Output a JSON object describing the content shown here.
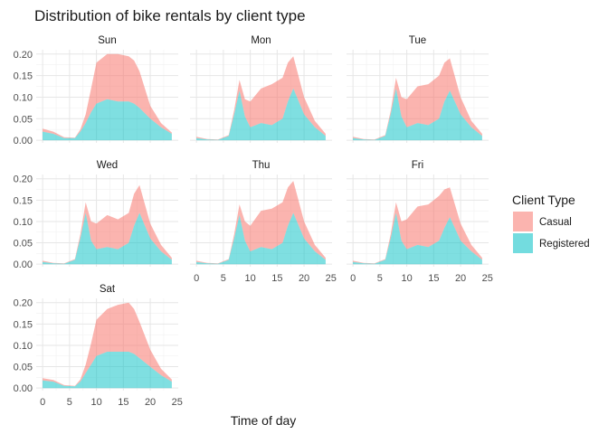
{
  "chart_data": {
    "type": "area",
    "title": "Distribution of bike rentals by client type",
    "xlabel": "Time of day",
    "ylabel": "",
    "xlim": [
      0,
      24
    ],
    "ylim": [
      0,
      0.21
    ],
    "x_ticks": [
      0,
      5,
      10,
      15,
      20,
      25
    ],
    "y_ticks": [
      0.0,
      0.05,
      0.1,
      0.15,
      0.2
    ],
    "y_tick_labels": [
      "0.00",
      "0.05",
      "0.10",
      "0.15",
      "0.20"
    ],
    "grid": true,
    "stacked": true,
    "legend": {
      "title": "Client Type",
      "position": "right",
      "entries": [
        {
          "name": "Casual",
          "color": "#f8766d"
        },
        {
          "name": "Registered",
          "color": "#00bfc4"
        }
      ]
    },
    "x": [
      0,
      2,
      4,
      6,
      7,
      8,
      9,
      10,
      12,
      14,
      16,
      17,
      18,
      20,
      22,
      24
    ],
    "facets": [
      {
        "label": "Sun",
        "series": [
          {
            "name": "Registered",
            "values": [
              0.02,
              0.015,
              0.005,
              0.005,
              0.02,
              0.04,
              0.065,
              0.085,
              0.095,
              0.09,
              0.09,
              0.085,
              0.075,
              0.05,
              0.03,
              0.015
            ]
          },
          {
            "name": "Casual",
            "values": [
              0.007,
              0.005,
              0.002,
              0.001,
              0.005,
              0.02,
              0.055,
              0.095,
              0.105,
              0.11,
              0.105,
              0.1,
              0.085,
              0.03,
              0.01,
              0.003
            ]
          }
        ]
      },
      {
        "label": "Mon",
        "series": [
          {
            "name": "Registered",
            "values": [
              0.005,
              0.002,
              0.001,
              0.01,
              0.06,
              0.115,
              0.055,
              0.03,
              0.04,
              0.035,
              0.05,
              0.09,
              0.12,
              0.06,
              0.03,
              0.01
            ]
          },
          {
            "name": "Casual",
            "values": [
              0.003,
              0.001,
              0.001,
              0.002,
              0.01,
              0.025,
              0.04,
              0.06,
              0.08,
              0.095,
              0.095,
              0.09,
              0.075,
              0.04,
              0.015,
              0.005
            ]
          }
        ]
      },
      {
        "label": "Tue",
        "series": [
          {
            "name": "Registered",
            "values": [
              0.005,
              0.002,
              0.001,
              0.01,
              0.06,
              0.12,
              0.055,
              0.03,
              0.04,
              0.035,
              0.05,
              0.09,
              0.115,
              0.06,
              0.03,
              0.01
            ]
          },
          {
            "name": "Casual",
            "values": [
              0.003,
              0.001,
              0.001,
              0.002,
              0.008,
              0.025,
              0.045,
              0.065,
              0.085,
              0.095,
              0.1,
              0.09,
              0.075,
              0.04,
              0.015,
              0.005
            ]
          }
        ]
      },
      {
        "label": "Wed",
        "series": [
          {
            "name": "Registered",
            "values": [
              0.005,
              0.002,
              0.001,
              0.01,
              0.06,
              0.12,
              0.055,
              0.035,
              0.04,
              0.035,
              0.05,
              0.09,
              0.12,
              0.06,
              0.03,
              0.01
            ]
          },
          {
            "name": "Casual",
            "values": [
              0.003,
              0.001,
              0.001,
              0.002,
              0.01,
              0.025,
              0.045,
              0.06,
              0.075,
              0.07,
              0.07,
              0.075,
              0.065,
              0.035,
              0.015,
              0.005
            ]
          }
        ]
      },
      {
        "label": "Thu",
        "series": [
          {
            "name": "Registered",
            "values": [
              0.005,
              0.002,
              0.001,
              0.01,
              0.06,
              0.115,
              0.055,
              0.03,
              0.04,
              0.035,
              0.05,
              0.09,
              0.12,
              0.06,
              0.03,
              0.01
            ]
          },
          {
            "name": "Casual",
            "values": [
              0.003,
              0.001,
              0.001,
              0.002,
              0.01,
              0.025,
              0.045,
              0.06,
              0.085,
              0.095,
              0.095,
              0.09,
              0.075,
              0.04,
              0.015,
              0.005
            ]
          }
        ]
      },
      {
        "label": "Fri",
        "series": [
          {
            "name": "Registered",
            "values": [
              0.005,
              0.002,
              0.001,
              0.01,
              0.06,
              0.12,
              0.055,
              0.035,
              0.045,
              0.04,
              0.055,
              0.085,
              0.11,
              0.055,
              0.03,
              0.01
            ]
          },
          {
            "name": "Casual",
            "values": [
              0.003,
              0.001,
              0.001,
              0.002,
              0.01,
              0.025,
              0.045,
              0.07,
              0.09,
              0.1,
              0.105,
              0.09,
              0.07,
              0.04,
              0.015,
              0.005
            ]
          }
        ]
      },
      {
        "label": "Sat",
        "series": [
          {
            "name": "Registered",
            "values": [
              0.018,
              0.015,
              0.005,
              0.004,
              0.015,
              0.035,
              0.055,
              0.075,
              0.085,
              0.085,
              0.085,
              0.08,
              0.07,
              0.05,
              0.03,
              0.015
            ]
          },
          {
            "name": "Casual",
            "values": [
              0.005,
              0.004,
              0.002,
              0.001,
              0.005,
              0.02,
              0.05,
              0.085,
              0.1,
              0.11,
              0.115,
              0.105,
              0.085,
              0.04,
              0.015,
              0.005
            ]
          }
        ]
      }
    ]
  }
}
